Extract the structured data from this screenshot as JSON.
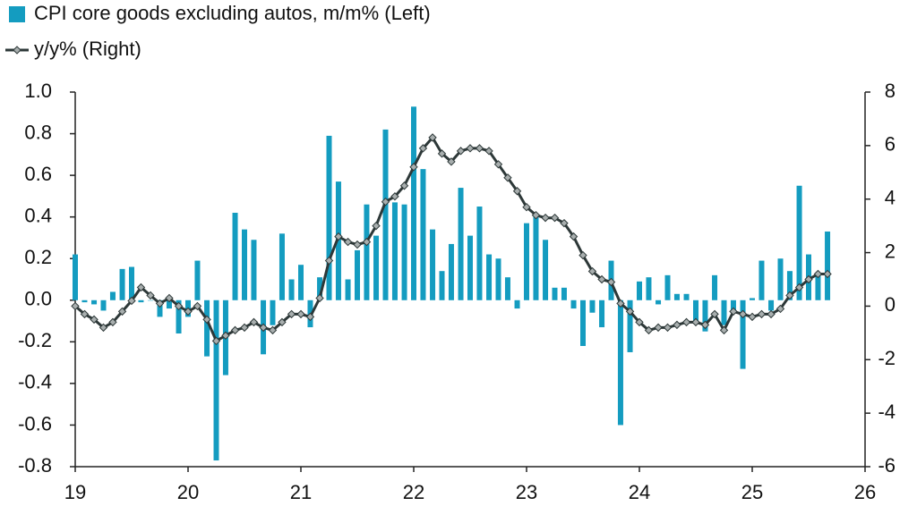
{
  "chart_data": {
    "type": "bar-line",
    "x": [
      19,
      19.083,
      19.167,
      19.25,
      19.333,
      19.417,
      19.5,
      19.583,
      19.667,
      19.75,
      19.833,
      19.917,
      20,
      20.083,
      20.167,
      20.25,
      20.333,
      20.417,
      20.5,
      20.583,
      20.667,
      20.75,
      20.833,
      20.917,
      21,
      21.083,
      21.167,
      21.25,
      21.333,
      21.417,
      21.5,
      21.583,
      21.667,
      21.75,
      21.833,
      21.917,
      22,
      22.083,
      22.167,
      22.25,
      22.333,
      22.417,
      22.5,
      22.583,
      22.667,
      22.75,
      22.833,
      22.917,
      23,
      23.083,
      23.167,
      23.25,
      23.333,
      23.417,
      23.5,
      23.583,
      23.667,
      23.75,
      23.833,
      23.917,
      24,
      24.083,
      24.167,
      24.25,
      24.333,
      24.417,
      24.5,
      24.583,
      24.667,
      24.75,
      24.833,
      24.917,
      25,
      25.083,
      25.167,
      25.25,
      25.333,
      25.417,
      25.5,
      25.583,
      25.667
    ],
    "series": [
      {
        "name": "CPI core goods excluding autos, m/m% (Left)",
        "type": "bar",
        "color": "#149cc0",
        "values": [
          0.22,
          -0.01,
          -0.02,
          -0.05,
          0.04,
          0.15,
          0.16,
          -0.01,
          0.0,
          -0.08,
          -0.04,
          -0.16,
          -0.08,
          0.19,
          -0.27,
          -0.77,
          -0.36,
          0.42,
          0.34,
          0.29,
          -0.26,
          -0.12,
          0.32,
          0.1,
          0.17,
          -0.13,
          0.11,
          0.79,
          0.57,
          0.1,
          0.24,
          0.46,
          0.31,
          0.82,
          0.47,
          0.46,
          0.93,
          0.63,
          0.34,
          0.14,
          0.27,
          0.54,
          0.31,
          0.45,
          0.22,
          0.2,
          0.11,
          -0.04,
          0.37,
          0.41,
          0.29,
          0.06,
          0.06,
          -0.04,
          -0.22,
          -0.06,
          -0.13,
          0.19,
          -0.6,
          -0.25,
          0.09,
          0.11,
          -0.02,
          0.12,
          0.03,
          0.03,
          -0.1,
          -0.15,
          0.12,
          -0.12,
          -0.06,
          -0.33,
          0.01,
          0.19,
          -0.05,
          0.2,
          0.14,
          0.55,
          0.22,
          0.12,
          0.33
        ]
      },
      {
        "name": "y/y% (Right)",
        "type": "line",
        "axis": "y2",
        "color": "#2d3838",
        "marker_color": "#a8aeae",
        "values": [
          0.0,
          -0.3,
          -0.5,
          -0.8,
          -0.6,
          -0.2,
          0.2,
          0.7,
          0.4,
          0.1,
          0.3,
          0.0,
          -0.2,
          0.0,
          -0.5,
          -1.3,
          -1.1,
          -0.9,
          -0.8,
          -0.6,
          -0.8,
          -0.9,
          -0.6,
          -0.3,
          -0.3,
          -0.4,
          0.3,
          1.7,
          2.6,
          2.4,
          2.3,
          2.4,
          3.0,
          3.9,
          4.1,
          4.5,
          5.2,
          5.9,
          6.3,
          5.7,
          5.4,
          5.8,
          5.9,
          5.9,
          5.8,
          5.3,
          4.8,
          4.3,
          3.7,
          3.4,
          3.3,
          3.3,
          3.1,
          2.6,
          1.9,
          1.3,
          1.0,
          0.9,
          0.1,
          -0.2,
          -0.6,
          -0.9,
          -0.8,
          -0.8,
          -0.7,
          -0.6,
          -0.6,
          -0.7,
          -0.3,
          -0.9,
          -0.2,
          -0.3,
          -0.4,
          -0.3,
          -0.3,
          -0.1,
          0.4,
          0.7,
          1.0,
          1.2,
          1.2
        ]
      }
    ],
    "xlim": [
      19,
      26
    ],
    "xticks": [
      19,
      20,
      21,
      22,
      23,
      24,
      25,
      26
    ],
    "ylim": [
      -0.8,
      1.0
    ],
    "yticks": [
      {
        "value": -0.8,
        "label": "-0.8"
      },
      {
        "value": -0.6,
        "label": "-0.6"
      },
      {
        "value": -0.4,
        "label": "-0.4"
      },
      {
        "value": -0.2,
        "label": "-0.2"
      },
      {
        "value": 0,
        "label": "0.0"
      },
      {
        "value": 0.2,
        "label": "0.2"
      },
      {
        "value": 0.4,
        "label": "0.4"
      },
      {
        "value": 0.6,
        "label": "0.6"
      },
      {
        "value": 0.8,
        "label": "0.8"
      },
      {
        "value": 1,
        "label": "1.0"
      }
    ],
    "y2lim": [
      -6,
      8
    ],
    "y2ticks": [
      -6,
      -4,
      -2,
      0,
      2,
      4,
      6,
      8
    ],
    "grid": false,
    "legend": "top-left"
  }
}
